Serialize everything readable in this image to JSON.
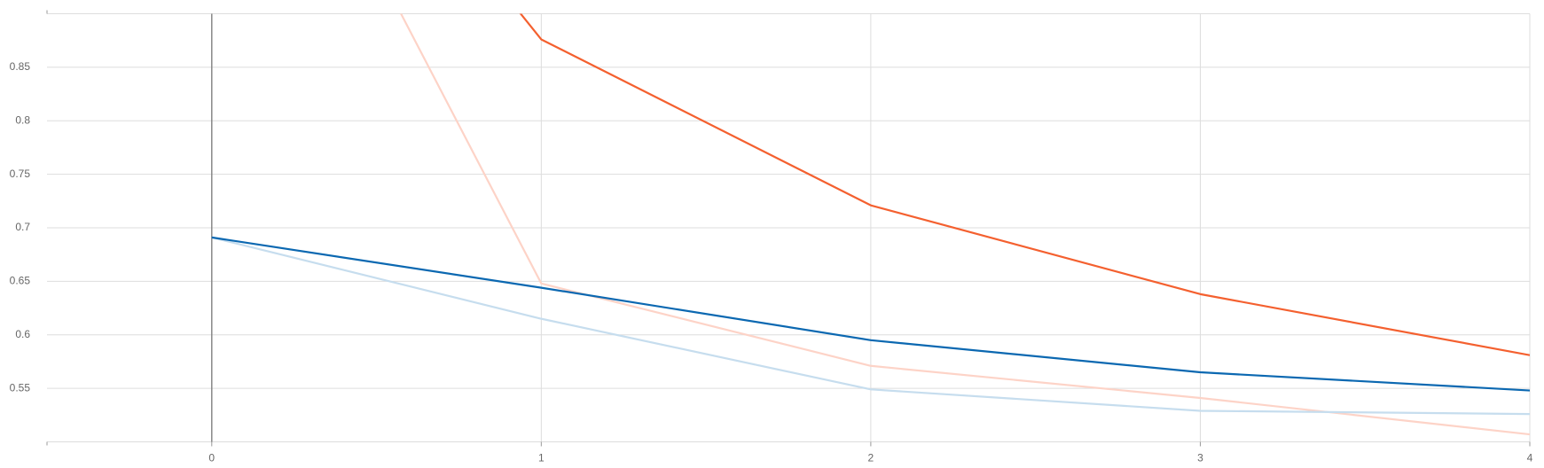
{
  "chart_data": {
    "type": "line",
    "x": [
      0,
      1,
      2,
      3,
      4
    ],
    "series": [
      {
        "color": "#fdd3c7",
        "values": [
          1.24,
          0.648,
          0.571,
          0.541,
          0.507
        ]
      },
      {
        "color": "#c6ddee",
        "values": [
          0.691,
          0.615,
          0.549,
          0.529,
          0.526
        ]
      },
      {
        "color": "#f4602f",
        "values": [
          1.26,
          0.876,
          0.721,
          0.638,
          0.581
        ]
      },
      {
        "color": "#0b68b1",
        "values": [
          0.691,
          0.644,
          0.595,
          0.565,
          0.548
        ]
      }
    ],
    "xlim": [
      -0.5,
      4
    ],
    "ylim": [
      0.5,
      0.9
    ],
    "xticks": [
      0,
      1,
      2,
      3,
      4
    ],
    "yticks": [
      0.55,
      0.6,
      0.65,
      0.7,
      0.75,
      0.8,
      0.85
    ],
    "grid": true
  }
}
